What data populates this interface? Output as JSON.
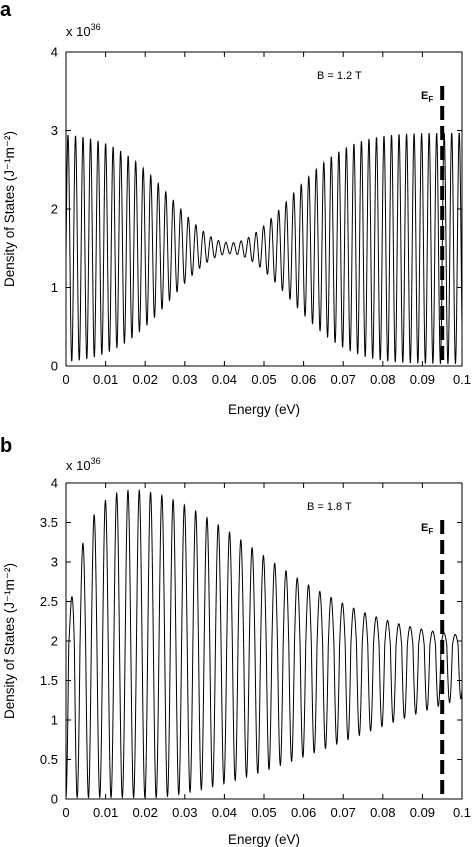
{
  "chart_data": [
    {
      "type": "line",
      "panel_label": "a",
      "xlabel": "Energy (eV)",
      "ylabel": "Density of States (J⁻¹m⁻²)",
      "multiplier": "x 10",
      "multiplier_exponent": "36",
      "annotation": "B = 1.2 T",
      "marker_label_main": "E",
      "marker_label_sub": "F",
      "marker_x": 0.095,
      "xlim": [
        0,
        0.1
      ],
      "ylim": [
        0,
        4
      ],
      "xticks": [
        "0",
        "0.01",
        "0.02",
        "0.03",
        "0.04",
        "0.05",
        "0.06",
        "0.07",
        "0.08",
        "0.09",
        "0.1"
      ],
      "yticks": [
        "0",
        "1",
        "2",
        "3",
        "4"
      ],
      "oscillation": {
        "period_eV": 0.0019,
        "center_eV": 0.0415,
        "peak_edge": 2.9,
        "trough_edge": 0.1,
        "mean_mid": 1.5,
        "node_width_eV": 0.033,
        "phase_start_eV": 0.0005
      }
    },
    {
      "type": "line",
      "panel_label": "b",
      "xlabel": "Energy (eV)",
      "ylabel": "Density of States (J⁻¹m⁻²)",
      "multiplier": "x 10",
      "multiplier_exponent": "36",
      "annotation": "B = 1.8 T",
      "marker_label_main": "E",
      "marker_label_sub": "F",
      "marker_x": 0.095,
      "xlim": [
        0,
        0.1
      ],
      "ylim": [
        0,
        4
      ],
      "xticks": [
        "0",
        "0.01",
        "0.02",
        "0.03",
        "0.04",
        "0.05",
        "0.06",
        "0.07",
        "0.08",
        "0.09",
        "0.1"
      ],
      "yticks": [
        "0",
        "0.5",
        "1",
        "1.5",
        "2",
        "2.5",
        "3",
        "3.5",
        "4"
      ],
      "oscillation": {
        "period_eV": 0.00285,
        "max_peak": 3.9,
        "peak_at_eV": 0.013,
        "damping_width_eV": 0.048,
        "mean_level": 1.95,
        "trough_min": 0.02,
        "phase_start_eV": 0.0014
      }
    }
  ]
}
